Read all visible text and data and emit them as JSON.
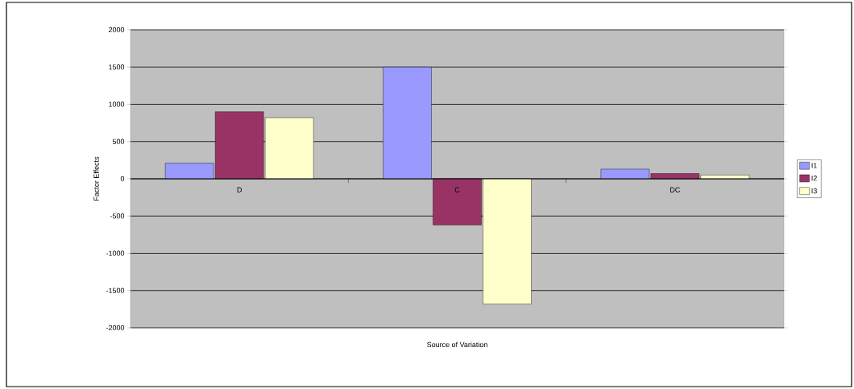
{
  "chart_data": {
    "type": "bar",
    "xlabel": "Source of Variation",
    "ylabel": "Factor Effects",
    "categories": [
      "D",
      "C",
      "DC"
    ],
    "series": [
      {
        "name": "I1",
        "color": "#9999ff",
        "values": [
          210,
          1500,
          130
        ]
      },
      {
        "name": "I2",
        "color": "#993366",
        "values": [
          900,
          -620,
          70
        ]
      },
      {
        "name": "I3",
        "color": "#ffffcc",
        "values": [
          820,
          -1680,
          50
        ]
      }
    ],
    "ylim": [
      -2000,
      2000
    ],
    "yticks": [
      -2000,
      -1500,
      -1000,
      -500,
      0,
      500,
      1000,
      1500,
      2000
    ],
    "grid": "y",
    "legend": "right"
  }
}
